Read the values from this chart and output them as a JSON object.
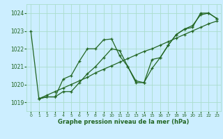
{
  "xlabel": "Graphe pression niveau de la mer (hPa)",
  "bg_color": "#cceeff",
  "grid_color": "#aaddcc",
  "line_color": "#226622",
  "ylim": [
    1018.5,
    1024.5
  ],
  "xlim": [
    -0.5,
    23.5
  ],
  "yticks": [
    1019,
    1020,
    1021,
    1022,
    1023,
    1024
  ],
  "xticks": [
    0,
    1,
    2,
    3,
    4,
    5,
    6,
    7,
    8,
    9,
    10,
    11,
    12,
    13,
    14,
    15,
    16,
    17,
    18,
    19,
    20,
    21,
    22,
    23
  ],
  "series1": {
    "x": [
      0,
      1,
      2,
      3,
      4,
      5,
      6,
      7,
      8,
      9,
      10,
      11,
      12,
      13,
      14,
      15,
      16,
      17,
      18,
      19,
      20,
      21,
      22,
      23
    ],
    "y": [
      1023.0,
      1019.2,
      1019.3,
      1019.3,
      1020.3,
      1020.5,
      1021.3,
      1022.0,
      1022.0,
      1022.5,
      1022.55,
      1021.6,
      1021.0,
      1020.1,
      1020.1,
      1021.4,
      1021.5,
      1022.2,
      1022.8,
      1023.1,
      1023.2,
      1024.0,
      1024.0,
      1023.7
    ]
  },
  "series2": {
    "x": [
      1,
      2,
      3,
      4,
      5,
      6,
      7,
      8,
      9,
      10,
      11,
      12,
      13,
      14,
      15,
      16,
      17,
      18,
      19,
      20,
      21,
      22,
      23
    ],
    "y": [
      1019.2,
      1019.4,
      1019.6,
      1019.8,
      1020.0,
      1020.2,
      1020.4,
      1020.65,
      1020.85,
      1021.05,
      1021.25,
      1021.45,
      1021.65,
      1021.85,
      1022.0,
      1022.2,
      1022.4,
      1022.6,
      1022.8,
      1023.0,
      1023.2,
      1023.4,
      1023.55
    ]
  },
  "series3": {
    "x": [
      1,
      2,
      3,
      4,
      5,
      6,
      7,
      8,
      9,
      10,
      11,
      12,
      13,
      14,
      15,
      16,
      17,
      18,
      19,
      20,
      21,
      22,
      23
    ],
    "y": [
      1019.2,
      1019.3,
      1019.3,
      1019.6,
      1019.6,
      1020.1,
      1020.6,
      1021.0,
      1021.5,
      1022.0,
      1021.9,
      1021.0,
      1020.2,
      1020.1,
      1020.9,
      1021.5,
      1022.2,
      1022.8,
      1023.1,
      1023.3,
      1023.9,
      1024.0,
      1023.7
    ]
  }
}
